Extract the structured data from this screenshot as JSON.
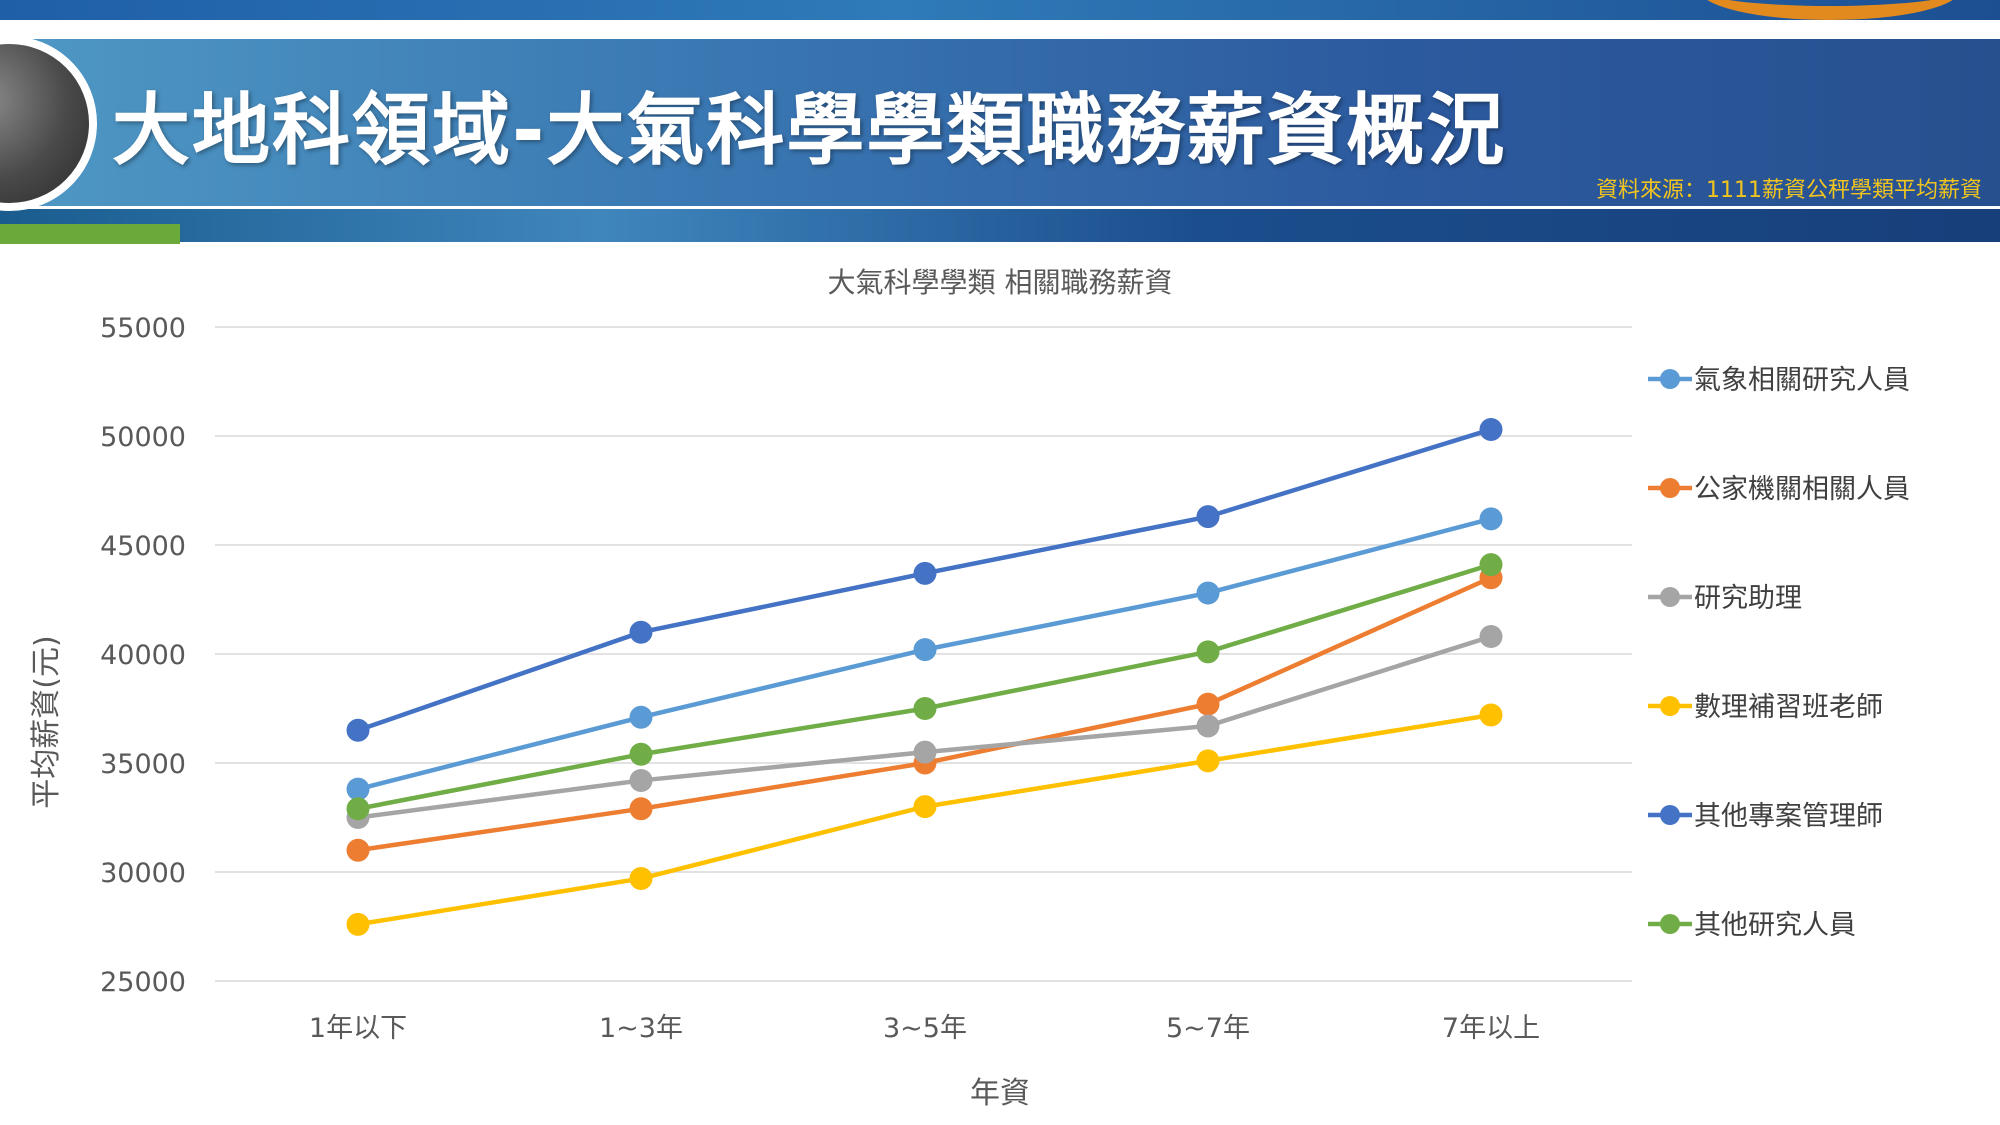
{
  "header": {
    "title": "大地科領域-大氣科學學類職務薪資概況",
    "source": "資料來源：1111薪資公秤學類平均薪資"
  },
  "chart_data": {
    "type": "line",
    "title": "大氣科學學類 相關職務薪資",
    "xlabel": "年資",
    "ylabel": "平均薪資(元)",
    "categories": [
      "1年以下",
      "1~3年",
      "3~5年",
      "5~7年",
      "7年以上"
    ],
    "ylim": [
      25000,
      55000
    ],
    "yticks": [
      55000,
      50000,
      45000,
      40000,
      35000,
      30000,
      25000
    ],
    "grid": true,
    "legend": "right",
    "series": [
      {
        "name": "氣象相關研究人員",
        "color": "#5b9bd5",
        "values": [
          33800,
          37100,
          40200,
          42800,
          46200
        ]
      },
      {
        "name": "公家機關相關人員",
        "color": "#ed7d31",
        "values": [
          31000,
          32900,
          35000,
          37700,
          43500
        ]
      },
      {
        "name": "研究助理",
        "color": "#a5a5a5",
        "values": [
          32500,
          34200,
          35500,
          36700,
          40800
        ]
      },
      {
        "name": "數理補習班老師",
        "color": "#ffc000",
        "values": [
          27600,
          29700,
          33000,
          35100,
          37200
        ]
      },
      {
        "name": "其他專案管理師",
        "color": "#4472c4",
        "values": [
          36500,
          41000,
          43700,
          46300,
          50300
        ]
      },
      {
        "name": "其他研究人員",
        "color": "#70ad47",
        "values": [
          32900,
          35400,
          37500,
          40100,
          44100
        ]
      }
    ]
  }
}
